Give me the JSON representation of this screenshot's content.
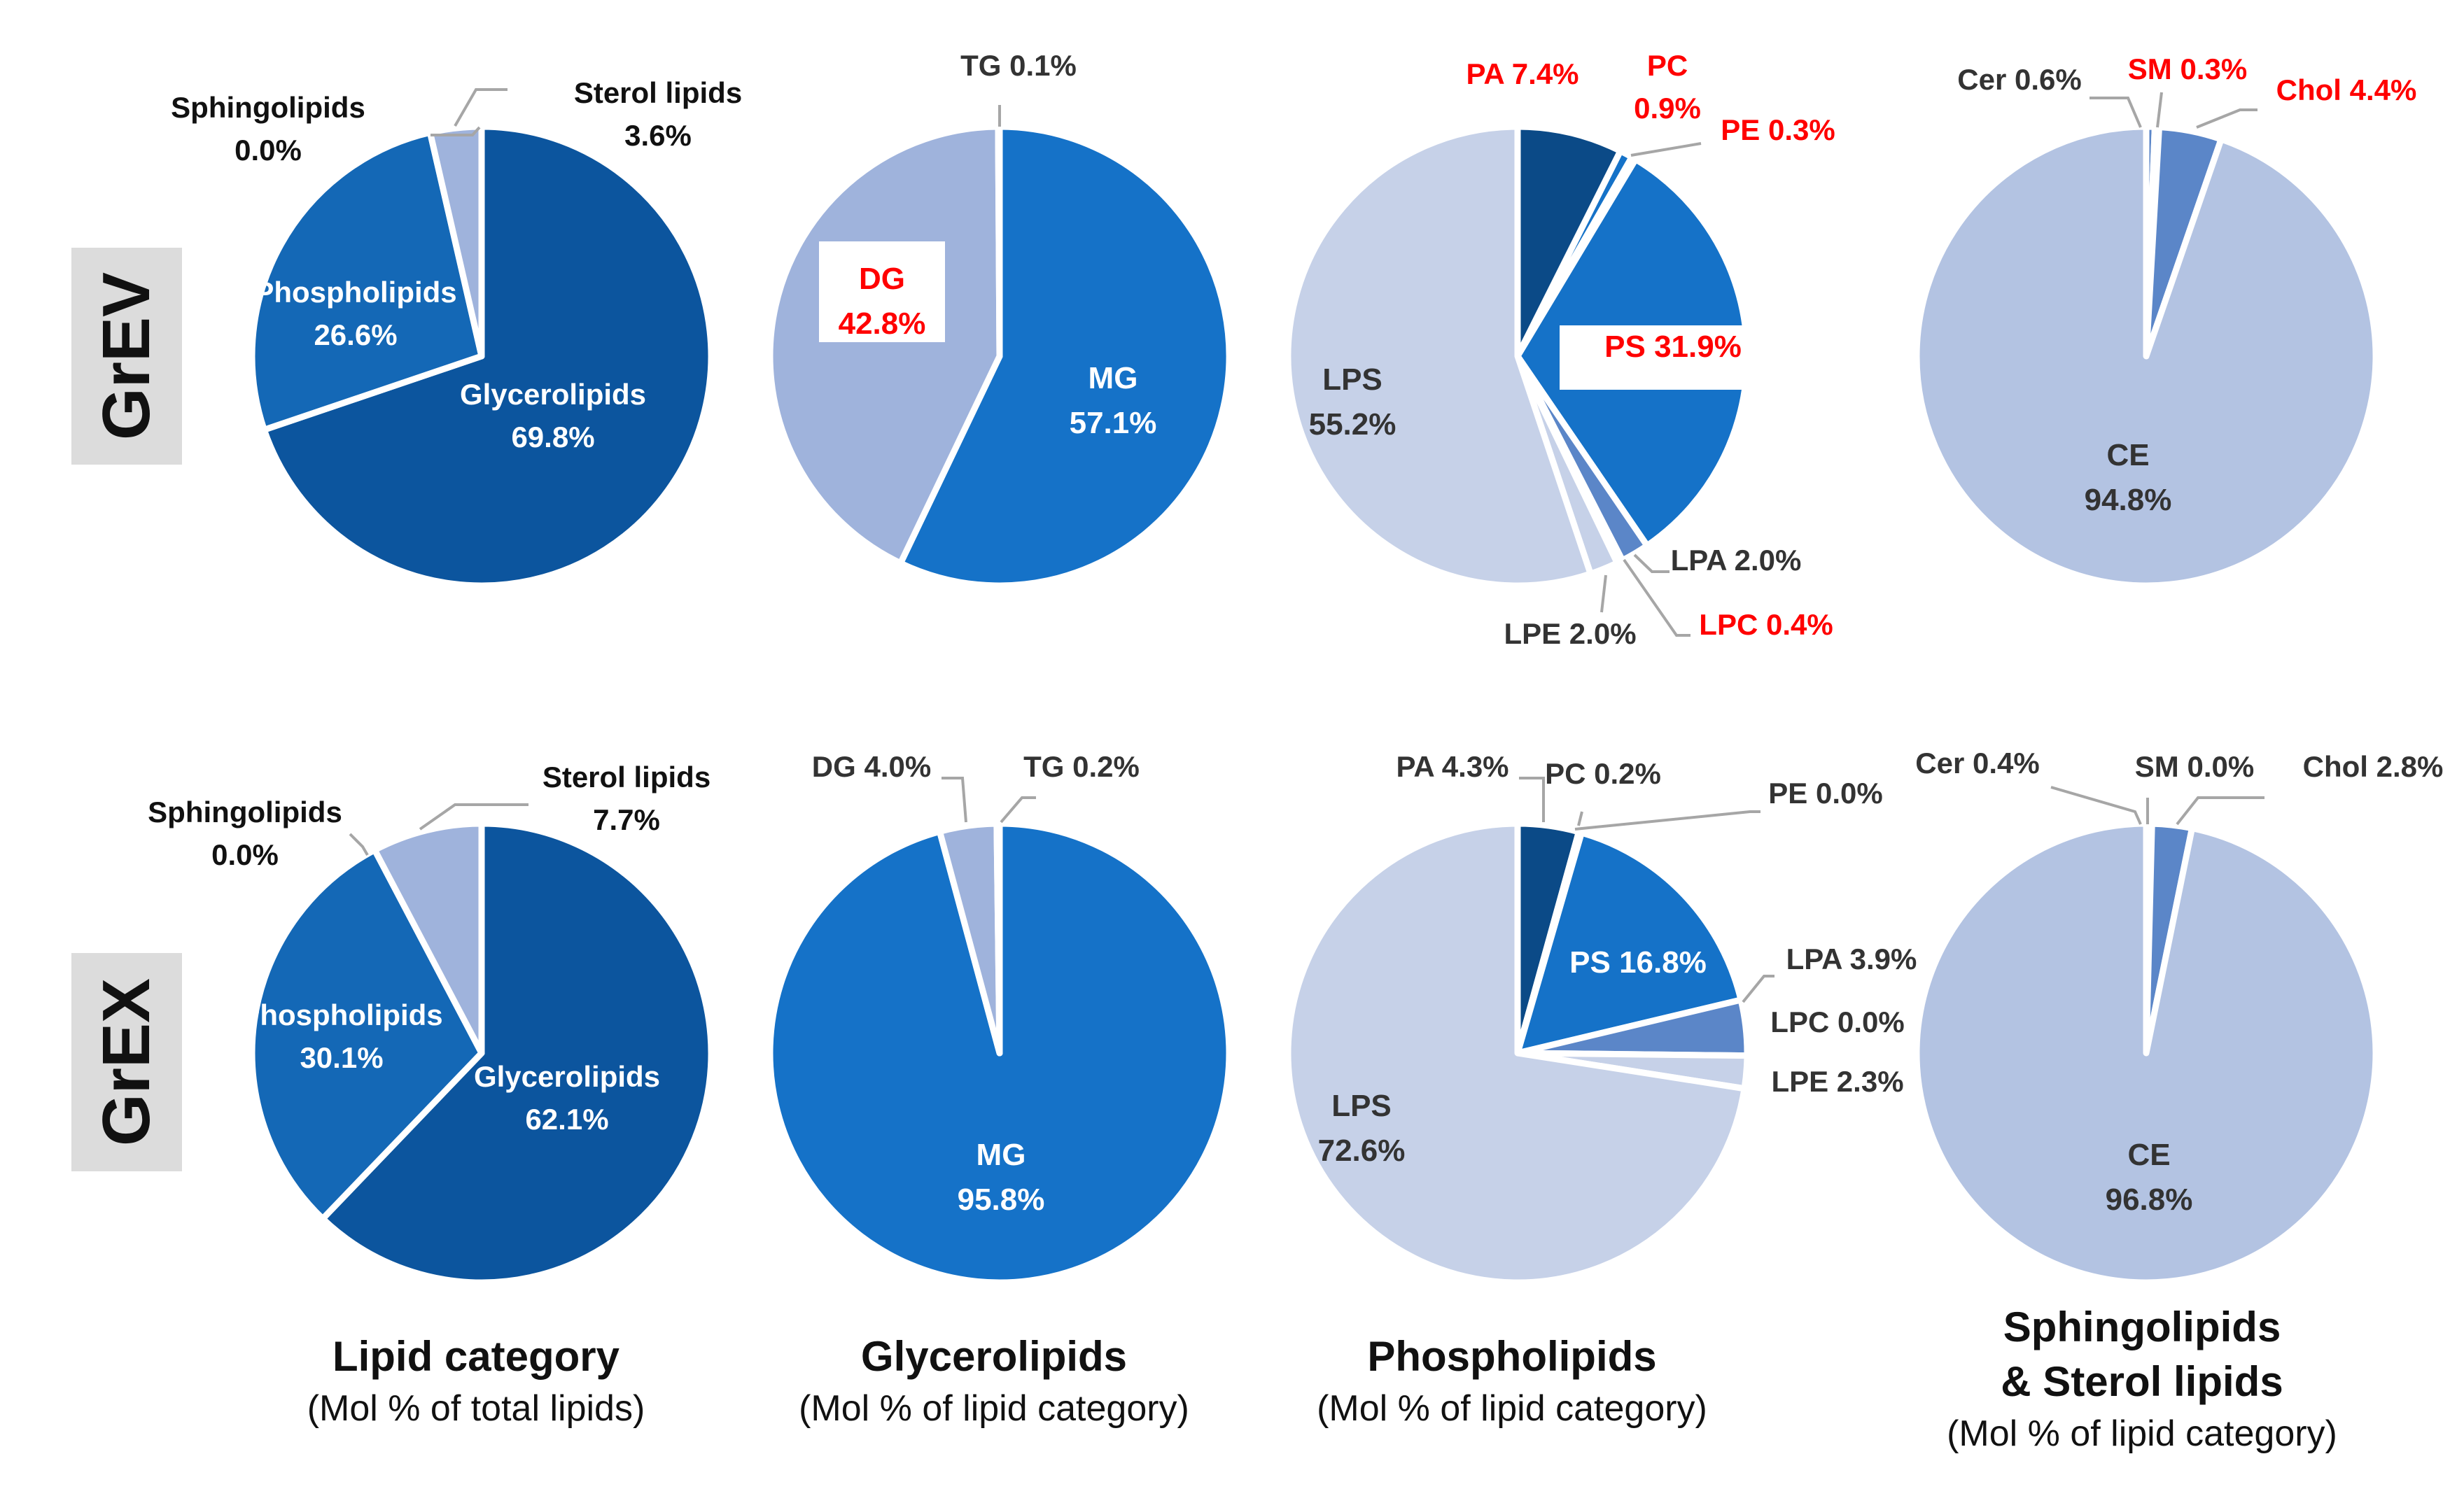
{
  "row_labels": [
    "GrEV",
    "GrEX"
  ],
  "captions": [
    {
      "title": "Lipid category",
      "subtitle": "(Mol % of total lipids)"
    },
    {
      "title": "Glycerolipids",
      "subtitle": "(Mol % of lipid category)"
    },
    {
      "title": "Phospholipids",
      "subtitle": "(Mol % of lipid category)"
    },
    {
      "title_line1": "Sphingolipids",
      "title_line2": "& Sterol lipids",
      "subtitle": "(Mol % of lipid category)"
    }
  ],
  "colors": {
    "darkest": "#0b4a87",
    "dark": "#0c559e",
    "medium": "#1468b6",
    "bright": "#1572c8",
    "mid_light": "#5b86c8",
    "light": "#9fb3dc",
    "pale": "#b3c3e2",
    "palest": "#c6d1e8",
    "highlight_red": "#ff0000",
    "leader": "#a6a6a6",
    "text_dark": "#333333"
  },
  "chart_data": [
    {
      "type": "pie",
      "panel": "Lipid category",
      "row": "GrEV",
      "slices": [
        {
          "name": "Glycerolipids",
          "value": 69.8,
          "label": "Glycerolipids",
          "value_label": "69.8%"
        },
        {
          "name": "Phospholipids",
          "value": 26.6,
          "label": "Phospholipids",
          "value_label": "26.6%"
        },
        {
          "name": "Sphingolipids",
          "value": 0.0,
          "label": "Sphingolipids",
          "value_label": "0.0%"
        },
        {
          "name": "Sterol lipids",
          "value": 3.6,
          "label": "Sterol lipids",
          "value_label": "3.6%"
        }
      ]
    },
    {
      "type": "pie",
      "panel": "Glycerolipids",
      "row": "GrEV",
      "slices": [
        {
          "name": "MG",
          "value": 57.1,
          "label": "MG",
          "value_label": "57.1%"
        },
        {
          "name": "DG",
          "value": 42.8,
          "label": "DG",
          "value_label": "42.8%",
          "highlight": true
        },
        {
          "name": "TG",
          "value": 0.1,
          "label": "TG 0.1%"
        }
      ]
    },
    {
      "type": "pie",
      "panel": "Phospholipids",
      "row": "GrEV",
      "slices": [
        {
          "name": "PA",
          "value": 7.4,
          "label": "PA 7.4%",
          "highlight": true
        },
        {
          "name": "PC",
          "value": 0.9,
          "label": "PC",
          "value_label": "0.9%",
          "highlight": true
        },
        {
          "name": "PE",
          "value": 0.3,
          "label": "PE 0.3%",
          "highlight": true
        },
        {
          "name": "PS",
          "value": 31.9,
          "label": "PS 31.9%",
          "highlight": true
        },
        {
          "name": "LPA",
          "value": 2.0,
          "label": "LPA 2.0%"
        },
        {
          "name": "LPC",
          "value": 0.4,
          "label": "LPC 0.4%",
          "highlight": true
        },
        {
          "name": "LPE",
          "value": 2.0,
          "label": "LPE 2.0%"
        },
        {
          "name": "LPS",
          "value": 55.2,
          "label": "LPS",
          "value_label": "55.2%"
        }
      ]
    },
    {
      "type": "pie",
      "panel": "Sphingolipids & Sterol lipids",
      "row": "GrEV",
      "slices": [
        {
          "name": "Cer",
          "value": 0.6,
          "label": "Cer 0.6%"
        },
        {
          "name": "SM",
          "value": 0.3,
          "label": "SM 0.3%",
          "highlight": true
        },
        {
          "name": "Chol",
          "value": 4.4,
          "label": "Chol 4.4%",
          "highlight": true
        },
        {
          "name": "CE",
          "value": 94.8,
          "label": "CE",
          "value_label": "94.8%"
        }
      ]
    },
    {
      "type": "pie",
      "panel": "Lipid category",
      "row": "GrEX",
      "slices": [
        {
          "name": "Glycerolipids",
          "value": 62.1,
          "label": "Glycerolipids",
          "value_label": "62.1%"
        },
        {
          "name": "Phospholipids",
          "value": 30.1,
          "label": "Phospholipids",
          "value_label": "30.1%"
        },
        {
          "name": "Sphingolipids",
          "value": 0.0,
          "label": "Sphingolipids",
          "value_label": "0.0%"
        },
        {
          "name": "Sterol lipids",
          "value": 7.7,
          "label": "Sterol lipids",
          "value_label": "7.7%"
        }
      ]
    },
    {
      "type": "pie",
      "panel": "Glycerolipids",
      "row": "GrEX",
      "slices": [
        {
          "name": "MG",
          "value": 95.8,
          "label": "MG",
          "value_label": "95.8%"
        },
        {
          "name": "DG",
          "value": 4.0,
          "label": "DG 4.0%"
        },
        {
          "name": "TG",
          "value": 0.2,
          "label": "TG 0.2%"
        }
      ]
    },
    {
      "type": "pie",
      "panel": "Phospholipids",
      "row": "GrEX",
      "slices": [
        {
          "name": "PA",
          "value": 4.3,
          "label": "PA 4.3%"
        },
        {
          "name": "PC",
          "value": 0.2,
          "label": "PC 0.2%"
        },
        {
          "name": "PE",
          "value": 0.0,
          "label": "PE 0.0%"
        },
        {
          "name": "PS",
          "value": 16.8,
          "label": "PS 16.8%"
        },
        {
          "name": "LPA",
          "value": 3.9,
          "label": "LPA 3.9%"
        },
        {
          "name": "LPC",
          "value": 0.0,
          "label": "LPC 0.0%"
        },
        {
          "name": "LPE",
          "value": 2.3,
          "label": "LPE 2.3%"
        },
        {
          "name": "LPS",
          "value": 72.6,
          "label": "LPS",
          "value_label": "72.6%"
        }
      ]
    },
    {
      "type": "pie",
      "panel": "Sphingolipids & Sterol lipids",
      "row": "GrEX",
      "slices": [
        {
          "name": "Cer",
          "value": 0.4,
          "label": "Cer 0.4%"
        },
        {
          "name": "SM",
          "value": 0.0,
          "label": "SM 0.0%"
        },
        {
          "name": "Chol",
          "value": 2.8,
          "label": "Chol 2.8%"
        },
        {
          "name": "CE",
          "value": 96.8,
          "label": "CE",
          "value_label": "96.8%"
        }
      ]
    }
  ]
}
